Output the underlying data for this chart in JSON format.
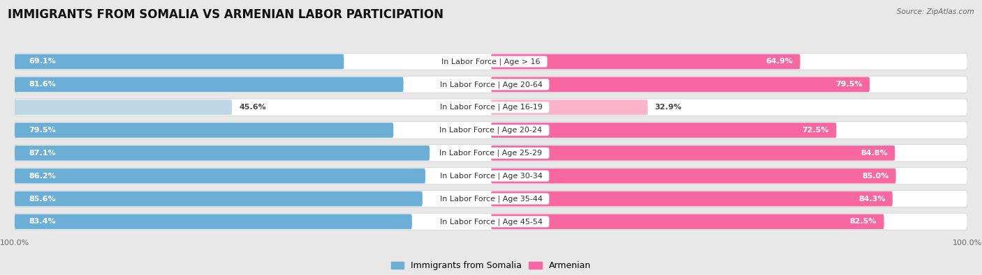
{
  "title": "IMMIGRANTS FROM SOMALIA VS ARMENIAN LABOR PARTICIPATION",
  "source": "Source: ZipAtlas.com",
  "categories": [
    "In Labor Force | Age > 16",
    "In Labor Force | Age 20-64",
    "In Labor Force | Age 16-19",
    "In Labor Force | Age 20-24",
    "In Labor Force | Age 25-29",
    "In Labor Force | Age 30-34",
    "In Labor Force | Age 35-44",
    "In Labor Force | Age 45-54"
  ],
  "somalia_values": [
    69.1,
    81.6,
    45.6,
    79.5,
    87.1,
    86.2,
    85.6,
    83.4
  ],
  "armenian_values": [
    64.9,
    79.5,
    32.9,
    72.5,
    84.8,
    85.0,
    84.3,
    82.5
  ],
  "somalia_color": "#6baed6",
  "somalia_color_light": "#bdd7e7",
  "armenian_color": "#f768a1",
  "armenian_color_light": "#fbb4ca",
  "row_bg_color": "#ffffff",
  "page_bg_color": "#e8e8e8",
  "max_value": 100.0,
  "title_fontsize": 12,
  "label_fontsize": 8,
  "value_fontsize": 8,
  "legend_fontsize": 9,
  "axis_label_fontsize": 8
}
